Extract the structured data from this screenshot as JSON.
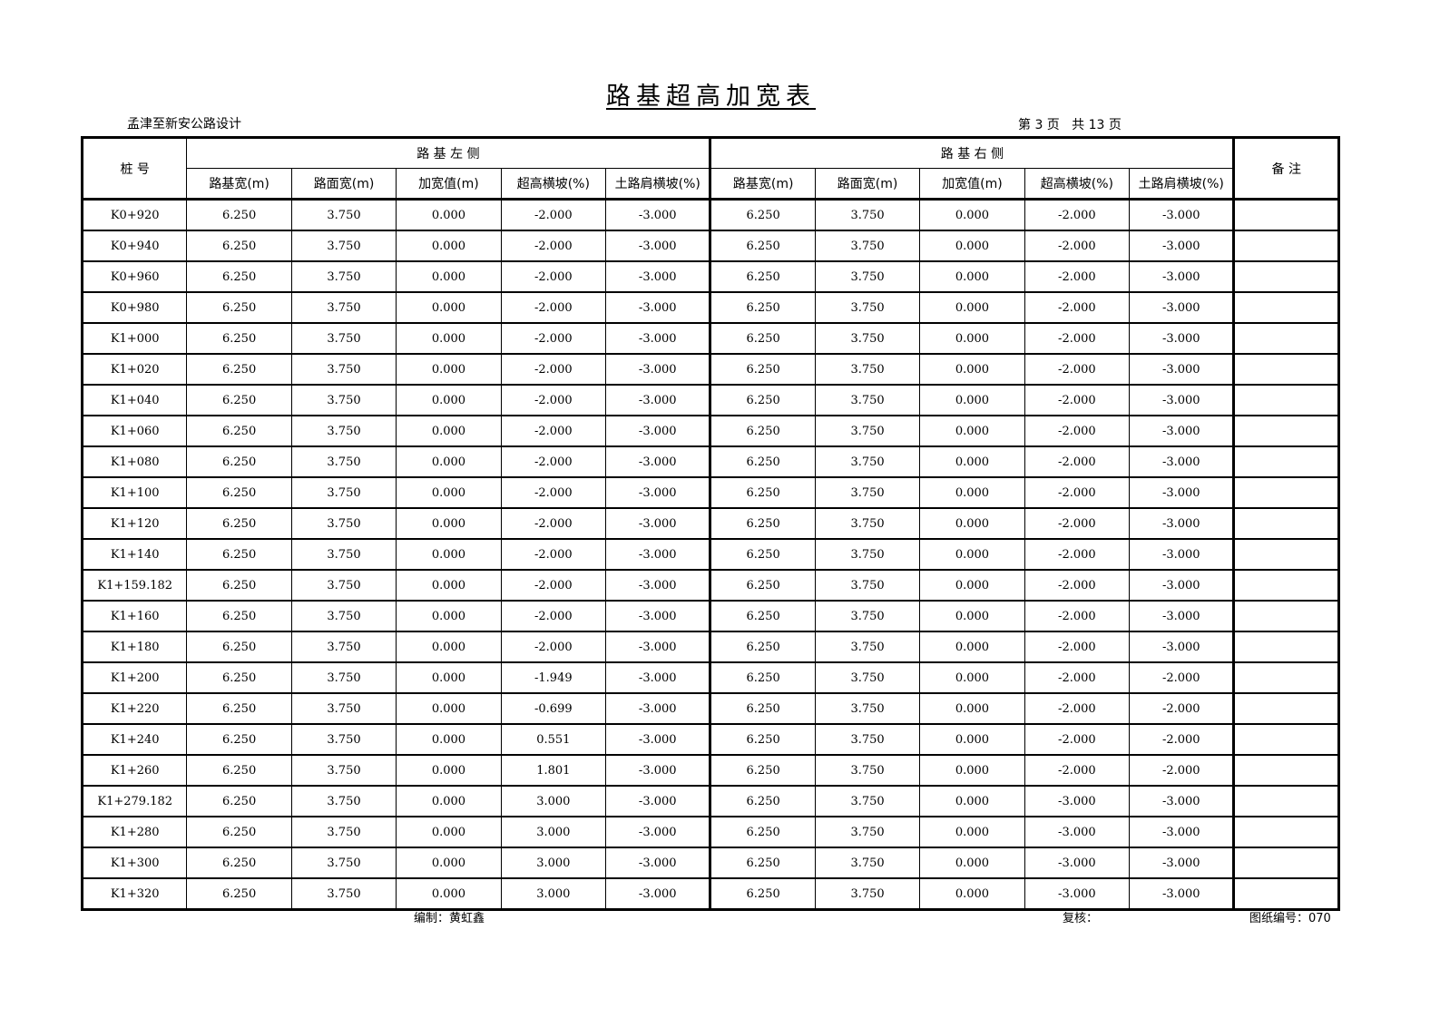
{
  "title": "路基超高加宽表",
  "project": "孟津至新安公路设计",
  "page_info": "第 3 页   共 13 页",
  "header": {
    "station": "桩 号",
    "left_group": "路 基 左 侧",
    "right_group": "路 基 右 侧",
    "remarks": "备 注",
    "left_cols": [
      "路基宽(m)",
      "路面宽(m)",
      "加宽值(m)",
      "超高横坡(%)",
      "土路肩横坡(%)"
    ],
    "right_cols": [
      "路基宽(m)",
      "路面宽(m)",
      "加宽值(m)",
      "超高横坡(%)",
      "土路肩横坡(%)"
    ]
  },
  "rows": [
    [
      "K0+920",
      "6.250",
      "3.750",
      "0.000",
      "-2.000",
      "-3.000",
      "6.250",
      "3.750",
      "0.000",
      "-2.000",
      "-3.000",
      ""
    ],
    [
      "K0+940",
      "6.250",
      "3.750",
      "0.000",
      "-2.000",
      "-3.000",
      "6.250",
      "3.750",
      "0.000",
      "-2.000",
      "-3.000",
      ""
    ],
    [
      "K0+960",
      "6.250",
      "3.750",
      "0.000",
      "-2.000",
      "-3.000",
      "6.250",
      "3.750",
      "0.000",
      "-2.000",
      "-3.000",
      ""
    ],
    [
      "K0+980",
      "6.250",
      "3.750",
      "0.000",
      "-2.000",
      "-3.000",
      "6.250",
      "3.750",
      "0.000",
      "-2.000",
      "-3.000",
      ""
    ],
    [
      "K1+000",
      "6.250",
      "3.750",
      "0.000",
      "-2.000",
      "-3.000",
      "6.250",
      "3.750",
      "0.000",
      "-2.000",
      "-3.000",
      ""
    ],
    [
      "K1+020",
      "6.250",
      "3.750",
      "0.000",
      "-2.000",
      "-3.000",
      "6.250",
      "3.750",
      "0.000",
      "-2.000",
      "-3.000",
      ""
    ],
    [
      "K1+040",
      "6.250",
      "3.750",
      "0.000",
      "-2.000",
      "-3.000",
      "6.250",
      "3.750",
      "0.000",
      "-2.000",
      "-3.000",
      ""
    ],
    [
      "K1+060",
      "6.250",
      "3.750",
      "0.000",
      "-2.000",
      "-3.000",
      "6.250",
      "3.750",
      "0.000",
      "-2.000",
      "-3.000",
      ""
    ],
    [
      "K1+080",
      "6.250",
      "3.750",
      "0.000",
      "-2.000",
      "-3.000",
      "6.250",
      "3.750",
      "0.000",
      "-2.000",
      "-3.000",
      ""
    ],
    [
      "K1+100",
      "6.250",
      "3.750",
      "0.000",
      "-2.000",
      "-3.000",
      "6.250",
      "3.750",
      "0.000",
      "-2.000",
      "-3.000",
      ""
    ],
    [
      "K1+120",
      "6.250",
      "3.750",
      "0.000",
      "-2.000",
      "-3.000",
      "6.250",
      "3.750",
      "0.000",
      "-2.000",
      "-3.000",
      ""
    ],
    [
      "K1+140",
      "6.250",
      "3.750",
      "0.000",
      "-2.000",
      "-3.000",
      "6.250",
      "3.750",
      "0.000",
      "-2.000",
      "-3.000",
      ""
    ],
    [
      "K1+159.182",
      "6.250",
      "3.750",
      "0.000",
      "-2.000",
      "-3.000",
      "6.250",
      "3.750",
      "0.000",
      "-2.000",
      "-3.000",
      ""
    ],
    [
      "K1+160",
      "6.250",
      "3.750",
      "0.000",
      "-2.000",
      "-3.000",
      "6.250",
      "3.750",
      "0.000",
      "-2.000",
      "-3.000",
      ""
    ],
    [
      "K1+180",
      "6.250",
      "3.750",
      "0.000",
      "-2.000",
      "-3.000",
      "6.250",
      "3.750",
      "0.000",
      "-2.000",
      "-3.000",
      ""
    ],
    [
      "K1+200",
      "6.250",
      "3.750",
      "0.000",
      "-1.949",
      "-3.000",
      "6.250",
      "3.750",
      "0.000",
      "-2.000",
      "-2.000",
      ""
    ],
    [
      "K1+220",
      "6.250",
      "3.750",
      "0.000",
      "-0.699",
      "-3.000",
      "6.250",
      "3.750",
      "0.000",
      "-2.000",
      "-2.000",
      ""
    ],
    [
      "K1+240",
      "6.250",
      "3.750",
      "0.000",
      "0.551",
      "-3.000",
      "6.250",
      "3.750",
      "0.000",
      "-2.000",
      "-2.000",
      ""
    ],
    [
      "K1+260",
      "6.250",
      "3.750",
      "0.000",
      "1.801",
      "-3.000",
      "6.250",
      "3.750",
      "0.000",
      "-2.000",
      "-2.000",
      ""
    ],
    [
      "K1+279.182",
      "6.250",
      "3.750",
      "0.000",
      "3.000",
      "-3.000",
      "6.250",
      "3.750",
      "0.000",
      "-3.000",
      "-3.000",
      ""
    ],
    [
      "K1+280",
      "6.250",
      "3.750",
      "0.000",
      "3.000",
      "-3.000",
      "6.250",
      "3.750",
      "0.000",
      "-3.000",
      "-3.000",
      ""
    ],
    [
      "K1+300",
      "6.250",
      "3.750",
      "0.000",
      "3.000",
      "-3.000",
      "6.250",
      "3.750",
      "0.000",
      "-3.000",
      "-3.000",
      ""
    ],
    [
      "K1+320",
      "6.250",
      "3.750",
      "0.000",
      "3.000",
      "-3.000",
      "6.250",
      "3.750",
      "0.000",
      "-3.000",
      "-3.000",
      ""
    ]
  ],
  "footer": {
    "compiler": "编制：黄虹鑫",
    "reviewer": "复核：",
    "drawing_no": "图纸编号：070"
  }
}
